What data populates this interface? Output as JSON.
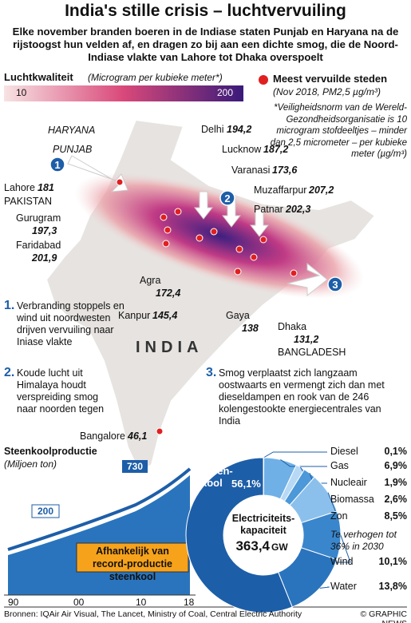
{
  "header": {
    "title": "India's stille crisis – luchtvervuiling",
    "subtitle": "Elke november branden boeren in de Indiase staten Punjab en Haryana na de rijstoogst hun velden af, en dragen zo bij aan een dichte smog, die de Noord-Indiase vlakte van Lahore tot Dhaka overspoelt"
  },
  "legend": {
    "label": "Luchtkwaliteit",
    "unit": "(Microgram per kubieke meter*)",
    "min": "10",
    "max": "200",
    "cities_title": "Meest vervuilde steden",
    "cities_note": "(Nov 2018, PM2,5 µg/m³)",
    "footnote": "*Veiligheidsnorm van de Wereld-Gezondheidsorganisatie is 10 microgram stofdeeltjes – minder dan 2,5 micrometer – per kubieke meter (µg/m³)"
  },
  "map": {
    "states": [
      "HARYANA",
      "PUNJAB"
    ],
    "countries": [
      "PAKISTAN",
      "INDIA",
      "BANGLADESH"
    ],
    "markers": [
      "1",
      "2",
      "3"
    ],
    "cities": [
      {
        "name": "Lahore",
        "value": "181"
      },
      {
        "name": "Gurugram",
        "value": "197,3"
      },
      {
        "name": "Faridabad",
        "value": "201,9"
      },
      {
        "name": "Delhi",
        "value": "194,2"
      },
      {
        "name": "Lucknow",
        "value": "187,2"
      },
      {
        "name": "Varanasi",
        "value": "173,6"
      },
      {
        "name": "Muzaffarpur",
        "value": "207,2"
      },
      {
        "name": "Patnar",
        "value": "202,3"
      },
      {
        "name": "Agra",
        "value": "172,4"
      },
      {
        "name": "Kanpur",
        "value": "145,4"
      },
      {
        "name": "Gaya",
        "value": "138"
      },
      {
        "name": "Dhaka",
        "value": "131,2"
      },
      {
        "name": "Bangalore",
        "value": "46,1"
      }
    ]
  },
  "points": [
    {
      "number": "1.",
      "text": "Verbranding stoppels en wind uit noordwesten drijven vervuiling naar Iniase vlakte"
    },
    {
      "number": "2.",
      "text": "Koude lucht uit Himalaya houdt verspreiding smog naar noorden tegen"
    },
    {
      "number": "3.",
      "text": "Smog verplaatst zich langzaam oostwaarts en vermengt zich dan met dieseldampen en rook van de 246 kolengestookte energiecentrales van India"
    }
  ],
  "coal": {
    "title": "Steenkoolproductie",
    "unit": "(Miljoen ton)",
    "start_label": "200",
    "end_label": "730",
    "note": "Afhankelijk van record-productie steenkool",
    "xticks": [
      "90",
      "00",
      "10",
      "18"
    ]
  },
  "capacity": {
    "title": "Electriciteits-kapaciteit",
    "total": "363,4",
    "total_unit": "GW",
    "zon_note": "Te verhogen tot 36% in 2030",
    "segments": [
      {
        "name": "Steen-kool",
        "value": 56.1,
        "label": "56,1%",
        "color": "#1d5ea8"
      },
      {
        "name": "Diesel",
        "value": 0.1,
        "label": "0,1%",
        "color": "#9fcbef"
      },
      {
        "name": "Gas",
        "value": 6.9,
        "label": "6,9%",
        "color": "#6fb0e6"
      },
      {
        "name": "Nucleair",
        "value": 1.9,
        "label": "1,9%",
        "color": "#b7d9f5"
      },
      {
        "name": "Biomassa",
        "value": 2.6,
        "label": "2,6%",
        "color": "#4c98d8"
      },
      {
        "name": "Zon",
        "value": 8.5,
        "label": "8,5%",
        "color": "#8cc0ec"
      },
      {
        "name": "Wind",
        "value": 10.1,
        "label": "10,1%",
        "color": "#3a86cc"
      },
      {
        "name": "Water",
        "value": 13.8,
        "label": "13,8%",
        "color": "#2a74bd"
      }
    ]
  },
  "footer": {
    "sources": "Bronnen: IQAir Air Visual, The Lancet, Ministry of Coal, Central Electric Authority",
    "credit": "© GRAPHIC NEWS"
  }
}
